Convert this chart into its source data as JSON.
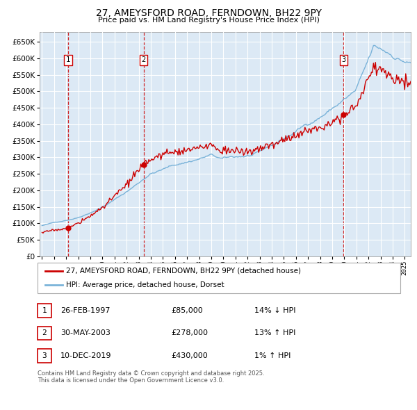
{
  "title": "27, AMEYSFORD ROAD, FERNDOWN, BH22 9PY",
  "subtitle": "Price paid vs. HM Land Registry's House Price Index (HPI)",
  "legend_line1": "27, AMEYSFORD ROAD, FERNDOWN, BH22 9PY (detached house)",
  "legend_line2": "HPI: Average price, detached house, Dorset",
  "footer": "Contains HM Land Registry data © Crown copyright and database right 2025.\nThis data is licensed under the Open Government Licence v3.0.",
  "sale_dates": [
    1997.15,
    2003.41,
    2019.94
  ],
  "sale_prices": [
    85000,
    278000,
    430000
  ],
  "sale_labels": [
    "1",
    "2",
    "3"
  ],
  "sale_info": [
    {
      "num": "1",
      "date": "26-FEB-1997",
      "price": "£85,000",
      "pct": "14% ↓ HPI"
    },
    {
      "num": "2",
      "date": "30-MAY-2003",
      "price": "£278,000",
      "pct": "13% ↑ HPI"
    },
    {
      "num": "3",
      "date": "10-DEC-2019",
      "price": "£430,000",
      "pct": "1% ↑ HPI"
    }
  ],
  "hpi_color": "#7ab3d9",
  "price_color": "#cc0000",
  "bg_color": "#dce9f5",
  "grid_color": "#ffffff",
  "vline_color": "#cc0000",
  "ylim": [
    0,
    680000
  ],
  "yticks": [
    0,
    50000,
    100000,
    150000,
    200000,
    250000,
    300000,
    350000,
    400000,
    450000,
    500000,
    550000,
    600000,
    650000
  ],
  "xmin": 1994.8,
  "xmax": 2025.5
}
